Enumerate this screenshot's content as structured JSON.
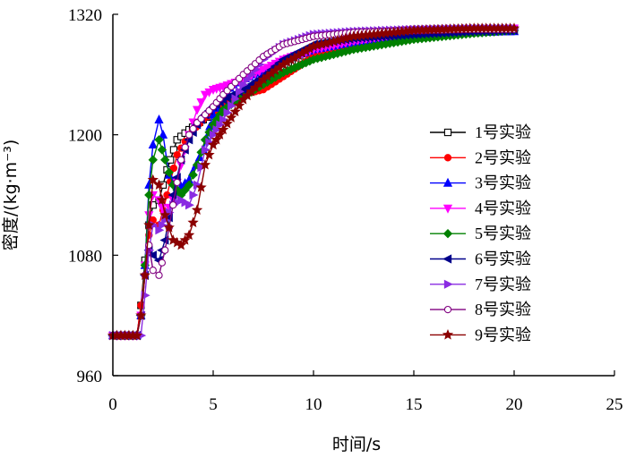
{
  "chart_data": {
    "type": "line",
    "title": "",
    "xlabel": "时间/s",
    "ylabel": "密度/(kg·m⁻³)",
    "xlim": [
      0,
      25
    ],
    "ylim": [
      960,
      1320
    ],
    "xticks": [
      0,
      5,
      10,
      15,
      20,
      25
    ],
    "yticks": [
      960,
      1080,
      1200,
      1320
    ],
    "grid": false,
    "legend_position": "right",
    "series": [
      {
        "name": "1号实验",
        "color": "#000000",
        "marker": "square",
        "x": [
          0,
          1.2,
          1.4,
          1.6,
          1.8,
          2.0,
          2.3,
          2.7,
          3.2,
          3.8,
          4.5,
          5.5,
          6.5,
          7.5,
          8.5,
          10,
          12,
          15,
          18,
          20
        ],
        "y": [
          1000,
          1000,
          1030,
          1075,
          1110,
          1130,
          1135,
          1165,
          1195,
          1205,
          1215,
          1228,
          1240,
          1250,
          1265,
          1280,
          1290,
          1297,
          1302,
          1304
        ]
      },
      {
        "name": "2号实验",
        "color": "#ff0000",
        "marker": "circle",
        "x": [
          0,
          1.2,
          1.4,
          1.6,
          1.8,
          2.0,
          2.3,
          2.7,
          3.2,
          3.8,
          4.5,
          5.5,
          6.5,
          7.5,
          8.5,
          10,
          12,
          15,
          18,
          20
        ],
        "y": [
          1000,
          1000,
          1030,
          1070,
          1100,
          1115,
          1110,
          1140,
          1180,
          1200,
          1215,
          1230,
          1240,
          1245,
          1258,
          1278,
          1290,
          1298,
          1303,
          1305
        ]
      },
      {
        "name": "3号实验",
        "color": "#0000ff",
        "marker": "triangle-up",
        "x": [
          0,
          1.2,
          1.4,
          1.6,
          1.8,
          2.0,
          2.3,
          2.5,
          2.8,
          3.2,
          3.8,
          4.5,
          5.0,
          5.5,
          6.0,
          7.0,
          8.0,
          9.0,
          10,
          12,
          15,
          18,
          20
        ],
        "y": [
          1000,
          1000,
          1020,
          1070,
          1150,
          1190,
          1215,
          1200,
          1160,
          1145,
          1155,
          1185,
          1220,
          1240,
          1250,
          1260,
          1268,
          1278,
          1285,
          1292,
          1298,
          1302,
          1303
        ]
      },
      {
        "name": "4号实验",
        "color": "#ff00ff",
        "marker": "triangle-down",
        "x": [
          0,
          1.2,
          1.4,
          1.6,
          1.8,
          2.0,
          2.3,
          2.6,
          3.0,
          3.4,
          3.8,
          4.2,
          4.6,
          5.0,
          5.5,
          6.5,
          7.5,
          8.5,
          10,
          12,
          15,
          18,
          20
        ],
        "y": [
          1000,
          1000,
          1020,
          1070,
          1120,
          1140,
          1135,
          1120,
          1135,
          1170,
          1200,
          1225,
          1240,
          1245,
          1248,
          1255,
          1265,
          1275,
          1285,
          1293,
          1300,
          1304,
          1306
        ]
      },
      {
        "name": "5号实验",
        "color": "#008000",
        "marker": "diamond",
        "x": [
          0,
          1.2,
          1.4,
          1.6,
          1.8,
          2.0,
          2.3,
          2.6,
          3.0,
          3.4,
          3.8,
          4.2,
          4.6,
          5.0,
          5.5,
          6.5,
          7.5,
          8.5,
          10,
          12,
          15,
          18,
          20
        ],
        "y": [
          1000,
          1000,
          1020,
          1070,
          1140,
          1175,
          1195,
          1175,
          1150,
          1140,
          1150,
          1170,
          1195,
          1210,
          1225,
          1238,
          1250,
          1262,
          1275,
          1285,
          1295,
          1301,
          1304
        ]
      },
      {
        "name": "6号实验",
        "color": "#00008b",
        "marker": "triangle-left",
        "x": [
          0,
          1.2,
          1.4,
          1.6,
          1.8,
          2.0,
          2.3,
          2.6,
          3.0,
          3.4,
          3.8,
          4.2,
          4.6,
          5.0,
          5.5,
          6.5,
          7.5,
          8.5,
          10,
          12,
          15,
          18,
          20
        ],
        "y": [
          1000,
          1000,
          1020,
          1060,
          1085,
          1080,
          1075,
          1095,
          1140,
          1175,
          1195,
          1210,
          1220,
          1228,
          1235,
          1245,
          1258,
          1275,
          1290,
          1296,
          1300,
          1303,
          1304
        ]
      },
      {
        "name": "7号实验",
        "color": "#8a2be2",
        "marker": "triangle-right",
        "x": [
          0,
          1.2,
          1.4,
          1.6,
          1.8,
          2.0,
          2.3,
          2.6,
          3.0,
          3.4,
          3.8,
          4.2,
          4.6,
          5.0,
          5.5,
          6.5,
          7.5,
          8.5,
          10,
          12,
          15,
          18,
          20
        ],
        "y": [
          1000,
          1000,
          1000,
          1040,
          1085,
          1110,
          1105,
          1115,
          1130,
          1135,
          1130,
          1150,
          1185,
          1200,
          1215,
          1250,
          1275,
          1290,
          1300,
          1303,
          1305,
          1306,
          1306
        ]
      },
      {
        "name": "8号实验",
        "color": "#800080",
        "marker": "circle-open",
        "x": [
          0,
          1.2,
          1.4,
          1.6,
          1.8,
          2.0,
          2.3,
          2.6,
          3.0,
          3.4,
          3.8,
          4.2,
          4.6,
          5.0,
          5.5,
          6.5,
          7.5,
          8.5,
          10,
          12,
          15,
          18,
          20
        ],
        "y": [
          1000,
          1000,
          1020,
          1060,
          1090,
          1065,
          1060,
          1085,
          1130,
          1175,
          1200,
          1212,
          1220,
          1228,
          1240,
          1260,
          1278,
          1290,
          1298,
          1302,
          1304,
          1305,
          1305
        ]
      },
      {
        "name": "9号实验",
        "color": "#8b0000",
        "marker": "star",
        "x": [
          0,
          1.2,
          1.4,
          1.6,
          1.8,
          2.0,
          2.3,
          2.6,
          3.0,
          3.4,
          3.8,
          4.2,
          4.6,
          5.0,
          5.5,
          6.5,
          7.5,
          8.5,
          10,
          12,
          15,
          18,
          20
        ],
        "y": [
          1000,
          1000,
          1020,
          1060,
          1110,
          1155,
          1150,
          1120,
          1095,
          1090,
          1100,
          1125,
          1170,
          1190,
          1205,
          1235,
          1255,
          1270,
          1288,
          1298,
          1304,
          1306,
          1306
        ]
      }
    ]
  }
}
